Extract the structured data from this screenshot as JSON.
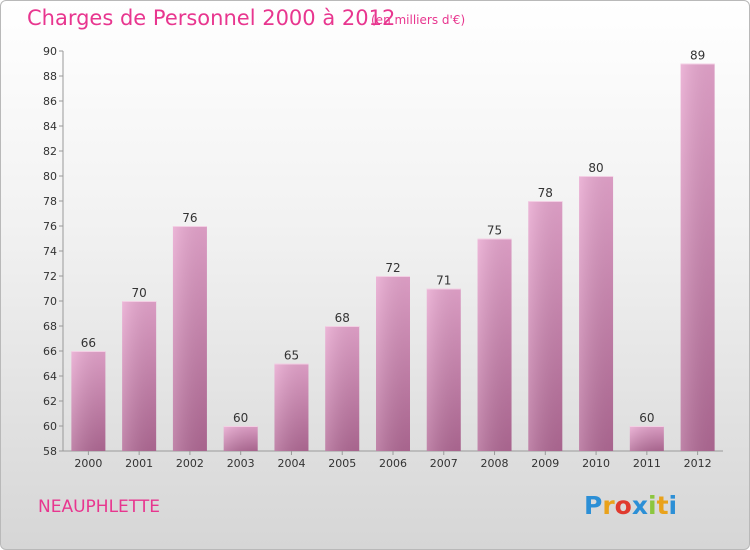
{
  "title": "Charges de Personnel 2000 à 2012",
  "subtitle": "(en milliers d'€)",
  "commune": "NEAUPHLETTE",
  "logo": {
    "text": "Proxiti",
    "letters": [
      "P",
      "r",
      "o",
      "x",
      "i",
      "t",
      "i"
    ],
    "colors": [
      "#2c8fd6",
      "#e9a21b",
      "#e03a2e",
      "#2c8fd6",
      "#8cc63f",
      "#e9a21b",
      "#2c8fd6"
    ]
  },
  "colors": {
    "title": "#e8368f",
    "bar_top": "#e8a6cf",
    "bar_bottom": "#b26a96"
  },
  "chart_data": {
    "type": "bar",
    "title": "Charges de Personnel 2000 à 2012",
    "subtitle": "(en milliers d'€)",
    "categories": [
      "2000",
      "2001",
      "2002",
      "2003",
      "2004",
      "2005",
      "2006",
      "2007",
      "2008",
      "2009",
      "2010",
      "2011",
      "2012"
    ],
    "values": [
      66,
      70,
      76,
      60,
      65,
      68,
      72,
      71,
      75,
      78,
      80,
      60,
      89
    ],
    "ylim": [
      58,
      90
    ],
    "yticks": [
      58,
      60,
      62,
      64,
      66,
      68,
      70,
      72,
      74,
      76,
      78,
      80,
      82,
      84,
      86,
      88,
      90
    ],
    "grid": false,
    "data_labels": true
  }
}
